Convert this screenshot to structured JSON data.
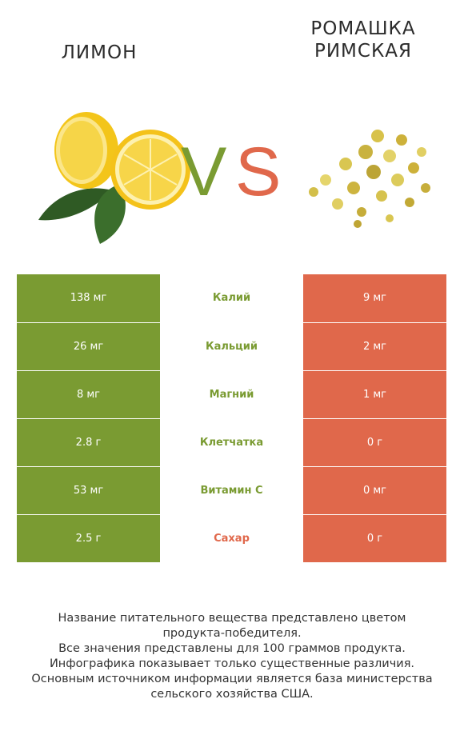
{
  "left_product": {
    "name": "Лимон",
    "color": "#7a9b32",
    "image": "lemon-photo"
  },
  "right_product": {
    "name": "Ромашка\nримская",
    "color": "#e0684b",
    "image": "chamomile-photo"
  },
  "vs": {
    "v": "V",
    "s": "S"
  },
  "rows": [
    {
      "nutrient": "Калий",
      "left": "138 мг",
      "right": "9 мг",
      "winner": "left"
    },
    {
      "nutrient": "Кальций",
      "left": "26 мг",
      "right": "2 мг",
      "winner": "left"
    },
    {
      "nutrient": "Магний",
      "left": "8 мг",
      "right": "1 мг",
      "winner": "left"
    },
    {
      "nutrient": "Клетчатка",
      "left": "2.8 г",
      "right": "0 г",
      "winner": "left"
    },
    {
      "nutrient": "Витамин C",
      "left": "53 мг",
      "right": "0 мг",
      "winner": "left"
    },
    {
      "nutrient": "Сахар",
      "left": "2.5 г",
      "right": "0 г",
      "winner": "right"
    }
  ],
  "chart_data": {
    "type": "table",
    "columns": [
      "Лимон",
      "",
      "Ромашка римская"
    ],
    "rows": [
      [
        "138 мг",
        "Калий",
        "9 мг"
      ],
      [
        "26 мг",
        "Кальций",
        "2 мг"
      ],
      [
        "8 мг",
        "Магний",
        "1 мг"
      ],
      [
        "2.8 г",
        "Клетчатка",
        "0 г"
      ],
      [
        "53 мг",
        "Витамин C",
        "0 мг"
      ],
      [
        "2.5 г",
        "Сахар",
        "0 г"
      ]
    ]
  },
  "footer": "Название питательного вещества представлено цветом\nпродукта-победителя.\nВсе значения представлены для 100 граммов продукта.\nИнфографика показывает только существенные различия.\nОсновным источником информации является база министерства\nсельского хозяйства США."
}
